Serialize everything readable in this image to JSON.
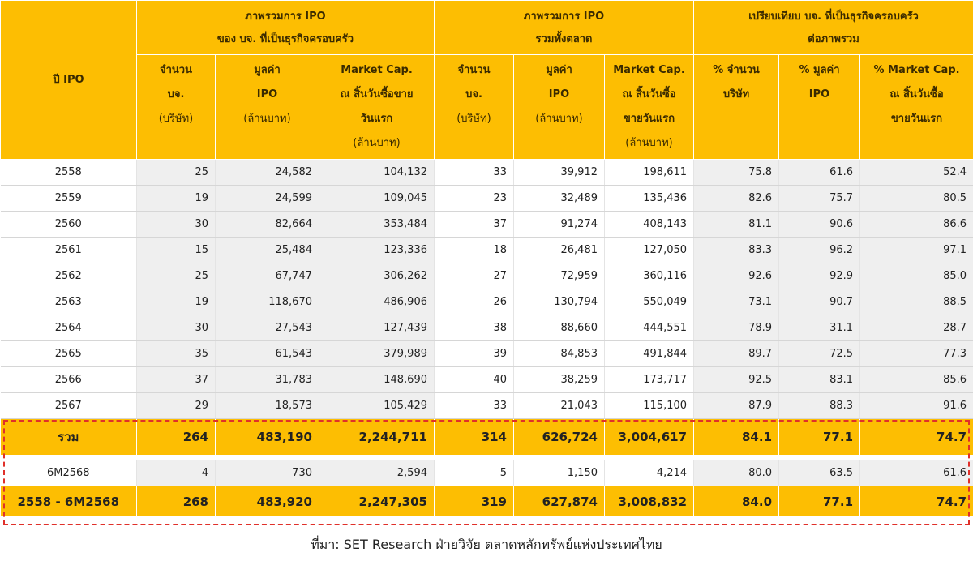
{
  "header": {
    "year_label": "ปี IPO",
    "groups": [
      {
        "lines": [
          "ภาพรวมการ IPO",
          "ของ บจ. ที่เป็นธุรกิจครอบครัว"
        ]
      },
      {
        "lines": [
          "ภาพรวมการ IPO",
          "รวมทั้งตลาด"
        ]
      },
      {
        "lines": [
          "เปรียบเทียบ บจ. ที่เป็นธุรกิจครอบครัว",
          "ต่อภาพรวม"
        ]
      }
    ],
    "columns": [
      {
        "lines": [
          "จำนวน",
          "บจ.",
          "(บริษัท)"
        ]
      },
      {
        "lines": [
          "มูลค่า",
          "IPO",
          "(ล้านบาท)"
        ]
      },
      {
        "lines": [
          "Market Cap.",
          "ณ สิ้นวันซื้อขาย",
          "วันแรก",
          "(ล้านบาท)"
        ]
      },
      {
        "lines": [
          "จำนวน",
          "บจ.",
          "(บริษัท)"
        ]
      },
      {
        "lines": [
          "มูลค่า",
          "IPO",
          "(ล้านบาท)"
        ]
      },
      {
        "lines": [
          "Market Cap.",
          "ณ สิ้นวันซื้อ",
          "ขายวันแรก",
          "(ล้านบาท)"
        ]
      },
      {
        "lines": [
          "% จำนวน",
          "บริษัท"
        ]
      },
      {
        "lines": [
          "% มูลค่า",
          "IPO"
        ]
      },
      {
        "lines": [
          "% Market Cap.",
          "ณ สิ้นวันซื้อ",
          "ขายวันแรก"
        ]
      }
    ]
  },
  "rows": [
    {
      "label": "2558",
      "values": [
        "25",
        "24,582",
        "104,132",
        "33",
        "39,912",
        "198,611",
        "75.8",
        "61.6",
        "52.4"
      ]
    },
    {
      "label": "2559",
      "values": [
        "19",
        "24,599",
        "109,045",
        "23",
        "32,489",
        "135,436",
        "82.6",
        "75.7",
        "80.5"
      ]
    },
    {
      "label": "2560",
      "values": [
        "30",
        "82,664",
        "353,484",
        "37",
        "91,274",
        "408,143",
        "81.1",
        "90.6",
        "86.6"
      ]
    },
    {
      "label": "2561",
      "values": [
        "15",
        "25,484",
        "123,336",
        "18",
        "26,481",
        "127,050",
        "83.3",
        "96.2",
        "97.1"
      ]
    },
    {
      "label": "2562",
      "values": [
        "25",
        "67,747",
        "306,262",
        "27",
        "72,959",
        "360,116",
        "92.6",
        "92.9",
        "85.0"
      ]
    },
    {
      "label": "2563",
      "values": [
        "19",
        "118,670",
        "486,906",
        "26",
        "130,794",
        "550,049",
        "73.1",
        "90.7",
        "88.5"
      ]
    },
    {
      "label": "2564",
      "values": [
        "30",
        "27,543",
        "127,439",
        "38",
        "88,660",
        "444,551",
        "78.9",
        "31.1",
        "28.7"
      ]
    },
    {
      "label": "2565",
      "values": [
        "35",
        "61,543",
        "379,989",
        "39",
        "84,853",
        "491,844",
        "89.7",
        "72.5",
        "77.3"
      ]
    },
    {
      "label": "2566",
      "values": [
        "37",
        "31,783",
        "148,690",
        "40",
        "38,259",
        "173,717",
        "92.5",
        "83.1",
        "85.6"
      ]
    },
    {
      "label": "2567",
      "values": [
        "29",
        "18,573",
        "105,429",
        "33",
        "21,043",
        "115,100",
        "87.9",
        "88.3",
        "91.6"
      ]
    }
  ],
  "total": {
    "label": "รวม",
    "values": [
      "264",
      "483,190",
      "2,244,711",
      "314",
      "626,724",
      "3,004,617",
      "84.1",
      "77.1",
      "74.7"
    ]
  },
  "partial": {
    "label": "6M2568",
    "values": [
      "4",
      "730",
      "2,594",
      "5",
      "1,150",
      "4,214",
      "80.0",
      "63.5",
      "61.6"
    ]
  },
  "grand_total": {
    "label": "2558 - 6M2568",
    "values": [
      "268",
      "483,920",
      "2,247,305",
      "319",
      "627,874",
      "3,008,832",
      "84.0",
      "77.1",
      "74.7"
    ]
  },
  "source": "ที่มา: SET Research ฝ่ายวิจัย ตลาดหลักทรัพย์แห่งประเทศไทย"
}
